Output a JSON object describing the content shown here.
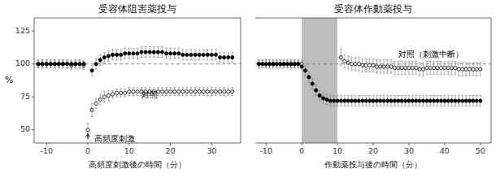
{
  "chart_data": [
    {
      "type": "scatter",
      "title": "受容体阻害薬投与",
      "x_label": "高頻度刺激後の時間（分）",
      "y_label": "%",
      "xlim": [
        -13,
        37
      ],
      "ylim": [
        40,
        135
      ],
      "xticks": [
        -10,
        0,
        10,
        20,
        30
      ],
      "yticks": [
        50,
        75,
        100,
        125
      ],
      "grid": false,
      "reference_lines": [
        {
          "y": 100,
          "line_style": "dashed"
        }
      ],
      "arrows": [
        {
          "x": 0,
          "y_from": 43,
          "y_to": 47
        }
      ],
      "annotations": [
        {
          "text": "高頻度刺激",
          "x": 1.5,
          "y": 43
        },
        {
          "text": "対照",
          "x": 13,
          "y": 76
        }
      ],
      "series": [
        {
          "marker": "open-circle",
          "color": "#000000",
          "x": [
            -12,
            -11,
            -10,
            -9,
            -8,
            -7,
            -6,
            -5,
            -4,
            -3,
            -2,
            -1,
            0,
            1,
            2,
            3,
            4,
            5,
            6,
            7,
            8,
            9,
            10,
            11,
            12,
            13,
            14,
            15,
            16,
            17,
            18,
            19,
            20,
            21,
            22,
            23,
            24,
            25,
            26,
            27,
            28,
            29,
            30,
            31,
            32,
            33,
            34,
            35
          ],
          "values": [
            100,
            100,
            100,
            100,
            100,
            100,
            100,
            100,
            99,
            100,
            100,
            99,
            50,
            65,
            70,
            73,
            75,
            76,
            77,
            78,
            78,
            78,
            79,
            79,
            79,
            79,
            79,
            79,
            79,
            79,
            79,
            79,
            79,
            79,
            79,
            79,
            79,
            79,
            79,
            79,
            79,
            79,
            79,
            79,
            79,
            79,
            79,
            79
          ],
          "errors": [
            3,
            3,
            3,
            3,
            3,
            3,
            3,
            3,
            3,
            3,
            3,
            3,
            5,
            5,
            4,
            4,
            4,
            4,
            3,
            3,
            3,
            3,
            3,
            3,
            3,
            3,
            3,
            3,
            3,
            3,
            3,
            3,
            3,
            3,
            3,
            3,
            3,
            3,
            3,
            3,
            3,
            3,
            3,
            3,
            3,
            3,
            3,
            3
          ]
        },
        {
          "marker": "filled-circle",
          "color": "#000000",
          "x": [
            -12,
            -11,
            -10,
            -9,
            -8,
            -7,
            -6,
            -5,
            -4,
            -3,
            -2,
            -1,
            1,
            2,
            3,
            4,
            5,
            6,
            7,
            8,
            9,
            10,
            11,
            12,
            13,
            14,
            15,
            16,
            17,
            18,
            19,
            20,
            21,
            22,
            23,
            24,
            25,
            26,
            27,
            28,
            29,
            30,
            31,
            32,
            33,
            34,
            35
          ],
          "values": [
            100,
            100,
            100,
            100,
            100,
            100,
            100,
            100,
            100,
            100,
            100,
            100,
            95,
            100,
            103,
            105,
            106,
            107,
            107,
            107,
            108,
            108,
            108,
            108,
            109,
            109,
            109,
            109,
            109,
            109,
            108,
            108,
            108,
            108,
            107,
            107,
            107,
            107,
            107,
            107,
            107,
            107,
            107,
            105,
            105,
            105,
            105
          ],
          "errors": [
            3,
            3,
            3,
            3,
            3,
            3,
            3,
            3,
            3,
            3,
            3,
            3,
            4,
            4,
            4,
            4,
            4,
            4,
            4,
            4,
            4,
            4,
            4,
            4,
            4,
            4,
            4,
            4,
            4,
            4,
            4,
            4,
            4,
            4,
            4,
            4,
            4,
            4,
            4,
            4,
            4,
            4,
            4,
            4,
            4,
            4,
            4
          ]
        }
      ]
    },
    {
      "type": "scatter",
      "title": "受容体作動薬投与",
      "x_label": "作動薬投与後の時間（分）",
      "xlim": [
        -13,
        53
      ],
      "ylim": [
        40,
        135
      ],
      "xticks": [
        -10,
        0,
        10,
        20,
        30,
        40,
        50
      ],
      "yticks": [],
      "tick_labels": "x",
      "grid": false,
      "shaded_x": [
        0,
        10
      ],
      "reference_lines": [
        {
          "y": 100,
          "line_style": "dashed"
        }
      ],
      "annotations": [
        {
          "text": "対照（刺激中断）",
          "x": 27,
          "y": 107
        }
      ],
      "series": [
        {
          "marker": "open-circle",
          "color": "#000000",
          "x": [
            -12,
            -11,
            -10,
            -9,
            -8,
            -7,
            -6,
            -5,
            -4,
            -3,
            -2,
            -1,
            0,
            11,
            12,
            13,
            14,
            15,
            16,
            17,
            18,
            19,
            20,
            21,
            22,
            23,
            24,
            25,
            26,
            27,
            28,
            29,
            30,
            31,
            32,
            33,
            34,
            35,
            36,
            37,
            38,
            39,
            40,
            41,
            42,
            43,
            44,
            45,
            46,
            47,
            48,
            49,
            50
          ],
          "values": [
            100,
            100,
            100,
            100,
            100,
            100,
            100,
            100,
            100,
            100,
            100,
            100,
            100,
            105,
            102,
            101,
            100,
            100,
            100,
            99,
            99,
            99,
            99,
            98,
            98,
            98,
            98,
            98,
            97,
            97,
            97,
            97,
            97,
            97,
            97,
            96,
            96,
            97,
            97,
            97,
            97,
            97,
            97,
            97,
            97,
            97,
            96,
            96,
            96,
            96,
            96,
            96,
            96
          ],
          "errors": [
            3,
            3,
            3,
            3,
            3,
            3,
            3,
            3,
            3,
            3,
            3,
            3,
            3,
            6,
            5,
            5,
            5,
            5,
            5,
            5,
            5,
            5,
            5,
            5,
            5,
            5,
            5,
            5,
            5,
            5,
            5,
            5,
            5,
            5,
            5,
            5,
            5,
            5,
            5,
            5,
            5,
            5,
            5,
            5,
            5,
            5,
            5,
            5,
            5,
            5,
            5,
            5,
            5
          ]
        },
        {
          "marker": "filled-circle",
          "color": "#000000",
          "x": [
            -12,
            -11,
            -10,
            -9,
            -8,
            -7,
            -6,
            -5,
            -4,
            -3,
            -2,
            -1,
            0,
            1,
            2,
            3,
            4,
            5,
            6,
            7,
            8,
            9,
            10,
            11,
            12,
            13,
            14,
            15,
            16,
            17,
            18,
            19,
            20,
            21,
            22,
            23,
            24,
            25,
            26,
            27,
            28,
            29,
            30,
            31,
            32,
            33,
            34,
            35,
            36,
            37,
            38,
            39,
            40,
            41,
            42,
            43,
            44,
            45,
            46,
            47,
            48,
            49,
            50
          ],
          "values": [
            100,
            100,
            100,
            100,
            100,
            100,
            100,
            100,
            100,
            100,
            100,
            100,
            98,
            95,
            90,
            85,
            80,
            76,
            74,
            73,
            72,
            72,
            72,
            72,
            72,
            72,
            72,
            72,
            72,
            72,
            72,
            72,
            72,
            72,
            72,
            72,
            72,
            72,
            72,
            72,
            72,
            72,
            72,
            72,
            72,
            72,
            72,
            72,
            72,
            72,
            72,
            72,
            72,
            72,
            72,
            72,
            72,
            72,
            72,
            72,
            72,
            72,
            72
          ],
          "errors": [
            3,
            3,
            3,
            3,
            3,
            3,
            3,
            3,
            3,
            3,
            3,
            3,
            3,
            4,
            4,
            4,
            4,
            4,
            4,
            4,
            4,
            4,
            4,
            4,
            4,
            4,
            4,
            4,
            4,
            4,
            4,
            4,
            4,
            4,
            4,
            4,
            4,
            4,
            4,
            4,
            4,
            4,
            4,
            4,
            4,
            4,
            4,
            4,
            4,
            4,
            4,
            4,
            4,
            4,
            4,
            4,
            4,
            4,
            4,
            4,
            4,
            4,
            4
          ]
        }
      ]
    }
  ]
}
